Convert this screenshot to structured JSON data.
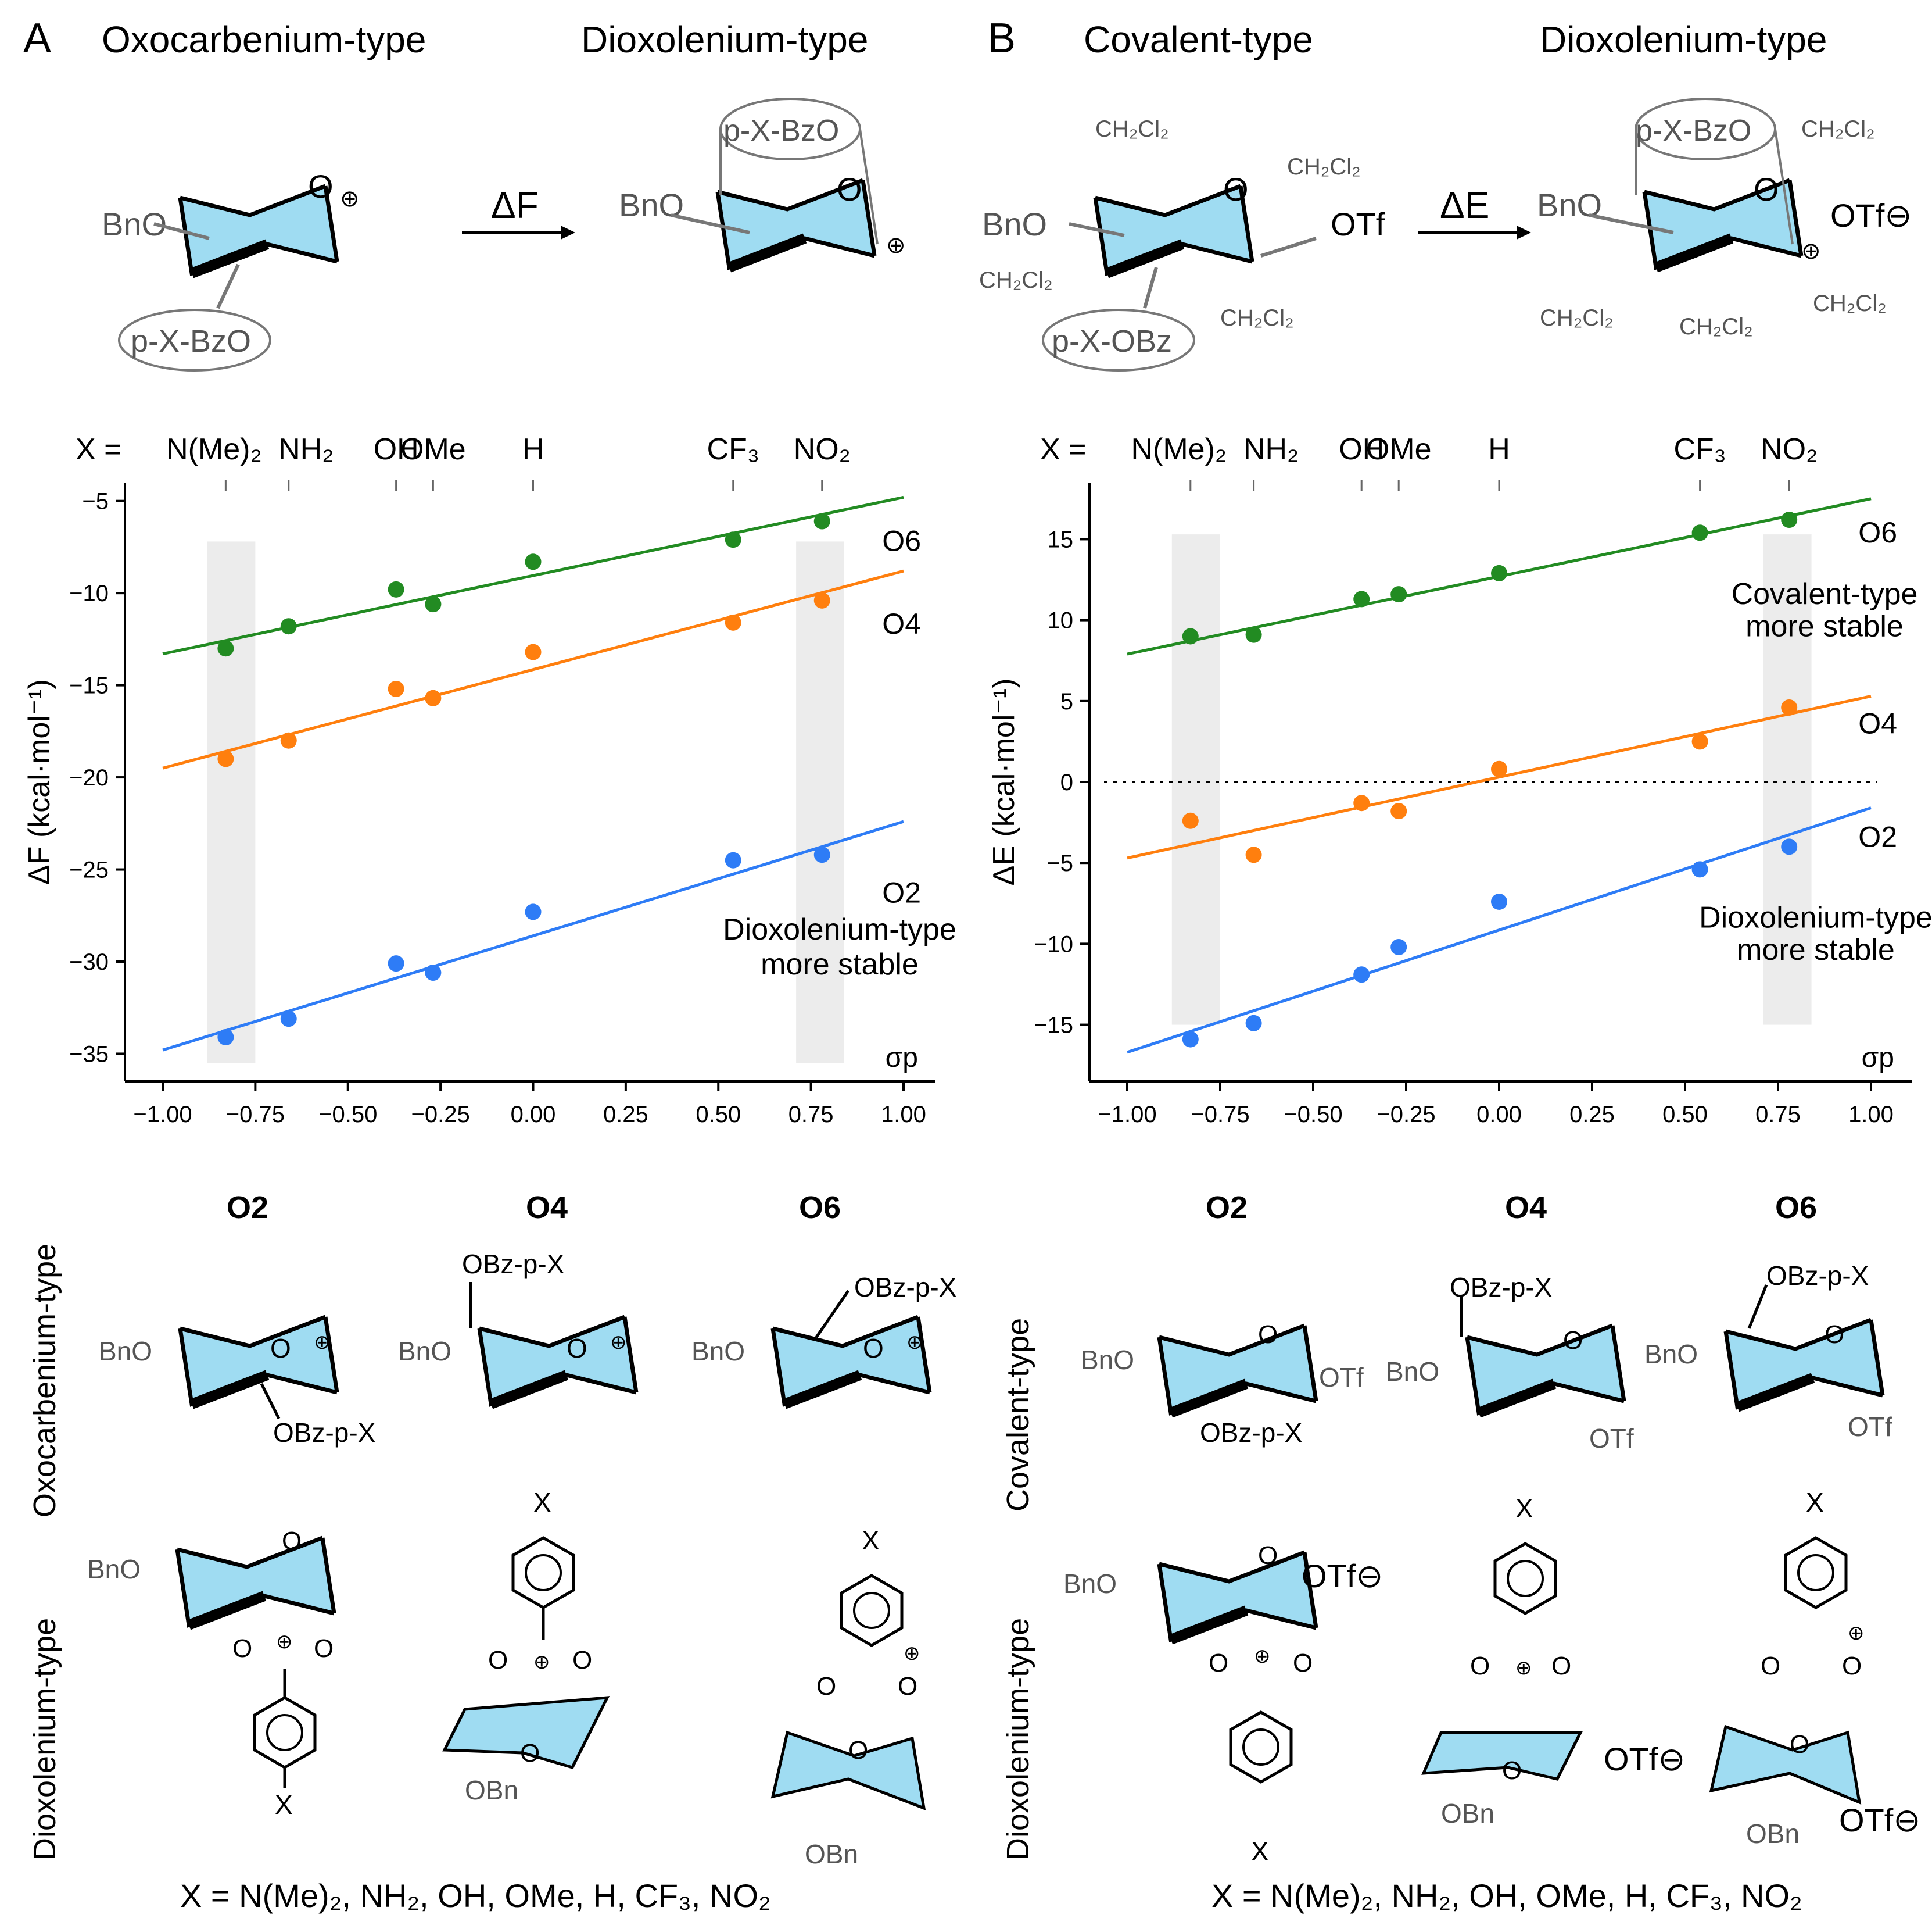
{
  "panels": {
    "A": {
      "letter": "A",
      "title_left": "Oxocarbenium-type",
      "title_right": "Dioxolenium-type",
      "arrow_label": "ΔF",
      "scheme": {
        "bno": "BnO",
        "ring_o": "O",
        "ester": "p-X-BzO",
        "plus": "⊕"
      }
    },
    "B": {
      "letter": "B",
      "title_left": "Covalent-type",
      "title_right": "Dioxolenium-type",
      "arrow_label": "ΔE",
      "scheme": {
        "bno": "BnO",
        "ring_o": "O",
        "ester_left": "p-X-OBz",
        "ester_right": "p-X-BzO",
        "otf": "OTf",
        "otf_anion": "OTf⊖",
        "plus": "⊕",
        "solvent": "CH₂Cl₂"
      }
    }
  },
  "x_eq": "X =",
  "substituents": [
    "N(Me)₂",
    "NH₂",
    "OH",
    "OMe",
    "H",
    "CF₃",
    "NO₂"
  ],
  "chart_data": [
    {
      "type": "scatter",
      "id": "A",
      "ylabel": "ΔF (kcal·mol⁻¹)",
      "xlabel": "σp",
      "xlim": [
        -1.1,
        1.1
      ],
      "ylim": [
        -36.5,
        -4
      ],
      "xticks": [
        -1.0,
        -0.75,
        -0.5,
        -0.25,
        0.0,
        0.25,
        0.5,
        0.75,
        1.0
      ],
      "xtick_labels": [
        "−1.00",
        "−0.75",
        "−0.50",
        "−0.25",
        "0.00",
        "0.25",
        "0.50",
        "0.75",
        "1.00"
      ],
      "yticks": [
        -35,
        -30,
        -25,
        -20,
        -15,
        -10,
        -5
      ],
      "ytick_labels": [
        "−35",
        "−30",
        "−25",
        "−20",
        "−15",
        "−10",
        "−5"
      ],
      "sigma": [
        -0.83,
        -0.66,
        -0.37,
        -0.27,
        0.0,
        0.54,
        0.78
      ],
      "shaded_ranges": [
        [
          -0.88,
          -0.75
        ],
        [
          0.71,
          0.84
        ]
      ],
      "series": [
        {
          "name": "O6",
          "color": "#228B22",
          "values": [
            -13.0,
            -11.8,
            -9.8,
            -10.6,
            -8.3,
            -7.1,
            -6.1
          ],
          "fit": [
            [
              -1.0,
              -13.3
            ],
            [
              1.0,
              -4.8
            ]
          ]
        },
        {
          "name": "O4",
          "color": "#FF7F0E",
          "values": [
            -19.0,
            -18.0,
            -15.2,
            -15.7,
            -13.2,
            -11.6,
            -10.4
          ],
          "fit": [
            [
              -1.0,
              -19.5
            ],
            [
              1.0,
              -8.8
            ]
          ]
        },
        {
          "name": "O2",
          "color": "#2E7CF6",
          "values": [
            -34.1,
            -33.1,
            -30.1,
            -30.6,
            -27.3,
            -24.5,
            -24.2
          ],
          "fit": [
            [
              -1.0,
              -34.8
            ],
            [
              1.0,
              -22.4
            ]
          ]
        }
      ],
      "annotations": [
        "Dioxolenium-type",
        "more stable"
      ]
    },
    {
      "type": "scatter",
      "id": "B",
      "ylabel": "ΔE (kcal·mol⁻¹)",
      "xlabel": "σp",
      "xlim": [
        -1.1,
        1.1
      ],
      "ylim": [
        -18.5,
        18.5
      ],
      "xticks": [
        -1.0,
        -0.75,
        -0.5,
        -0.25,
        0.0,
        0.25,
        0.5,
        0.75,
        1.0
      ],
      "xtick_labels": [
        "−1.00",
        "−0.75",
        "−0.50",
        "−0.25",
        "0.00",
        "0.25",
        "0.50",
        "0.75",
        "1.00"
      ],
      "yticks": [
        -15,
        -10,
        -5,
        0,
        5,
        10,
        15
      ],
      "ytick_labels": [
        "−15",
        "−10",
        "−5",
        "0",
        "5",
        "10",
        "15"
      ],
      "sigma": [
        -0.83,
        -0.66,
        -0.37,
        -0.27,
        0.0,
        0.54,
        0.78
      ],
      "shaded_ranges": [
        [
          -0.88,
          -0.75
        ],
        [
          0.71,
          0.84
        ]
      ],
      "zero_line": true,
      "series": [
        {
          "name": "O6",
          "color": "#228B22",
          "values": [
            9.0,
            9.1,
            11.3,
            11.6,
            12.9,
            15.4,
            16.2
          ],
          "fit": [
            [
              -1.0,
              7.9
            ],
            [
              1.0,
              17.5
            ]
          ]
        },
        {
          "name": "O4",
          "color": "#FF7F0E",
          "values": [
            -2.4,
            -4.5,
            -1.3,
            -1.8,
            0.8,
            2.5,
            4.6
          ],
          "fit": [
            [
              -1.0,
              -4.7
            ],
            [
              1.0,
              5.3
            ]
          ]
        },
        {
          "name": "O2",
          "color": "#2E7CF6",
          "values": [
            -15.9,
            -14.9,
            -11.9,
            -10.2,
            -7.4,
            -5.4,
            -4.0
          ],
          "fit": [
            [
              -1.0,
              -16.7
            ],
            [
              1.0,
              -1.6
            ]
          ]
        }
      ],
      "annotations_top": [
        "Covalent-type",
        "more stable"
      ],
      "annotations": [
        "Dioxolenium-type",
        "more stable"
      ]
    }
  ],
  "bottom": {
    "A": {
      "cols": [
        "O2",
        "O4",
        "O6"
      ],
      "row_top": "Oxocarbenium-type",
      "row_bottom": "Dioxolenium-type",
      "obz": "OBz-p-X",
      "bno": "BnO",
      "obn": "OBn",
      "o": "O",
      "x": "X",
      "plus": "⊕"
    },
    "B": {
      "cols": [
        "O2",
        "O4",
        "O6"
      ],
      "row_top": "Covalent-type",
      "row_bottom": "Dioxolenium-type",
      "obz": "OBz-p-X",
      "bno": "BnO",
      "obn": "OBn",
      "otf": "OTf",
      "otf_anion": "OTf⊖",
      "o": "O",
      "x": "X",
      "plus": "⊕"
    },
    "footer": "X = N(Me)₂, NH₂, OH, OMe, H, CF₃, NO₂"
  }
}
